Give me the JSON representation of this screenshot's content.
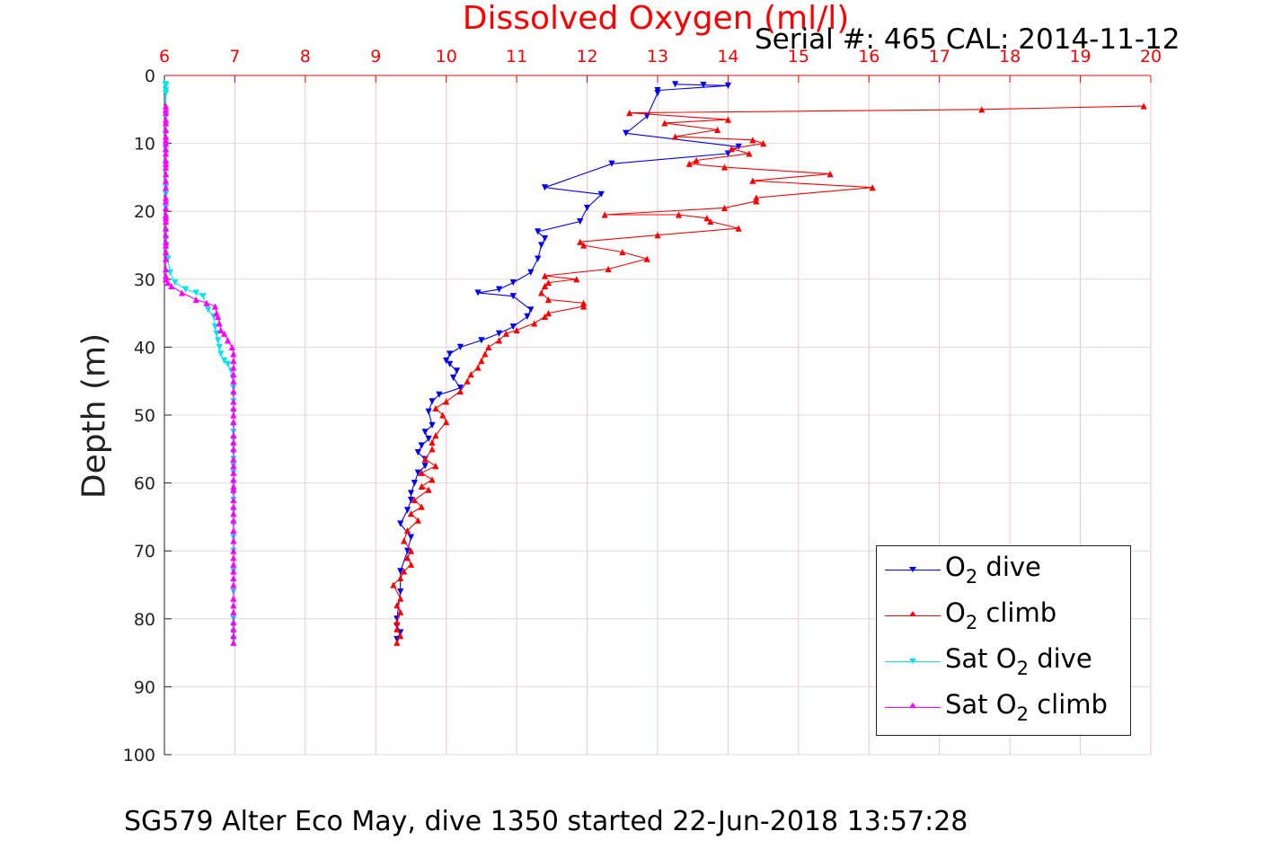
{
  "title": "Dissolved Oxygen (ml/l)",
  "serial": "Serial #: 465  CAL: 2014-11-12",
  "footer": "SG579 Alter Eco May, dive 1350 started 22-Jun-2018 13:57:28",
  "colors": {
    "o2_dive": "#0000ff",
    "o2_climb": "#ff0000",
    "sat_dive": "#00e5ee",
    "sat_climb": "#ff00ff",
    "grid": "#f6c0cc",
    "title": "#ff0000"
  },
  "legend": [
    {
      "pre": "O",
      "sub": "2",
      "post": " dive",
      "color": "#0000ff",
      "marker": "down"
    },
    {
      "pre": "O",
      "sub": "2",
      "post": " climb",
      "color": "#ff0000",
      "marker": "up"
    },
    {
      "pre": "Sat O",
      "sub": "2",
      "post": " dive",
      "color": "#00e5ee",
      "marker": "down"
    },
    {
      "pre": "Sat O",
      "sub": "2",
      "post": " climb",
      "color": "#ff00ff",
      "marker": "up"
    }
  ],
  "chart_data": {
    "type": "line",
    "title": "Dissolved Oxygen (ml/l)",
    "xlabel": "Dissolved Oxygen (ml/l)",
    "ylabel": "Depth (m)",
    "xlim": [
      6,
      20
    ],
    "ylim": [
      0,
      100
    ],
    "y_reversed": true,
    "x_axis_position": "top",
    "grid": true,
    "legend_position": "bottom-right",
    "xticks": [
      6,
      7,
      8,
      9,
      10,
      11,
      12,
      13,
      14,
      15,
      16,
      17,
      18,
      19,
      20
    ],
    "yticks": [
      0,
      10,
      20,
      30,
      40,
      50,
      60,
      70,
      80,
      90,
      100
    ],
    "series": [
      {
        "name": "O2 dive",
        "color": "#0000ff",
        "marker": "down",
        "x": [
          13.25,
          13.65,
          14.0,
          13.0,
          13.0,
          12.85,
          12.55,
          14.15,
          14.0,
          12.35,
          11.4,
          12.2,
          12.0,
          11.9,
          11.3,
          11.4,
          11.35,
          11.3,
          11.2,
          10.95,
          10.75,
          10.45,
          10.95,
          11.2,
          11.15,
          10.95,
          10.75,
          10.5,
          10.2,
          10.05,
          10.0,
          10.05,
          10.15,
          10.1,
          10.2,
          9.9,
          9.8,
          9.75,
          9.8,
          9.7,
          9.75,
          9.65,
          9.6,
          9.7,
          9.7,
          9.6,
          9.55,
          9.5,
          9.5,
          9.45,
          9.35,
          9.5,
          9.45,
          9.35,
          9.35,
          9.3,
          9.3,
          9.35,
          9.3
        ],
        "y": [
          1.3,
          1.4,
          1.5,
          2.2,
          2.6,
          6.0,
          8.5,
          10.5,
          11.5,
          13.0,
          16.5,
          17.5,
          19.5,
          21.5,
          23.0,
          24.0,
          25.0,
          27.0,
          29.0,
          30.5,
          31.5,
          32.0,
          32.5,
          34.5,
          35.5,
          37.0,
          38.0,
          39.0,
          40.0,
          41.0,
          42.0,
          42.5,
          43.5,
          44.5,
          46.0,
          47.0,
          48.0,
          49.5,
          51.5,
          52.5,
          53.5,
          54.5,
          55.5,
          56.5,
          57.5,
          58.5,
          60.0,
          61.5,
          62.5,
          64.0,
          66.0,
          68.0,
          70.0,
          73.0,
          76.0,
          80.0,
          81.0,
          82.0,
          83.0
        ]
      },
      {
        "name": "O2 climb",
        "color": "#ff0000",
        "marker": "up",
        "x": [
          9.3,
          9.35,
          9.3,
          9.3,
          9.35,
          9.3,
          9.35,
          9.25,
          9.35,
          9.4,
          9.5,
          9.45,
          9.5,
          9.4,
          9.45,
          9.6,
          9.5,
          9.65,
          9.55,
          9.75,
          9.65,
          9.8,
          9.65,
          9.85,
          9.7,
          9.8,
          9.8,
          9.85,
          10.0,
          9.95,
          9.85,
          10.0,
          10.2,
          10.3,
          10.35,
          10.45,
          10.5,
          10.55,
          10.6,
          10.75,
          10.85,
          11.0,
          11.25,
          11.4,
          11.45,
          11.95,
          11.95,
          11.45,
          11.35,
          11.4,
          11.45,
          11.85,
          11.4,
          12.3,
          12.85,
          12.5,
          11.95,
          11.9,
          13.0,
          14.15,
          13.75,
          13.7,
          13.3,
          12.25,
          13.95,
          14.4,
          14.4,
          16.05,
          14.35,
          15.45,
          13.95,
          13.45,
          13.55,
          14.3,
          14.05,
          14.5,
          14.35,
          13.25,
          13.85,
          13.1,
          14.0,
          12.6,
          17.6,
          19.9
        ],
        "y": [
          83.5,
          82.5,
          81.5,
          80.5,
          79.0,
          78.0,
          77.0,
          75.0,
          74.0,
          73.0,
          72.0,
          71.0,
          70.0,
          68.5,
          67.0,
          65.5,
          64.5,
          63.5,
          62.5,
          61.0,
          60.5,
          59.5,
          58.5,
          57.5,
          56.5,
          55.0,
          54.0,
          53.0,
          51.0,
          50.0,
          49.0,
          48.0,
          46.5,
          45.0,
          44.0,
          43.0,
          42.0,
          41.0,
          40.0,
          39.0,
          38.0,
          37.5,
          36.5,
          35.5,
          35.0,
          34.0,
          33.5,
          33.0,
          32.0,
          31.0,
          30.5,
          30.0,
          29.5,
          28.5,
          27.0,
          26.0,
          25.0,
          24.5,
          23.5,
          22.5,
          21.5,
          21.0,
          20.5,
          20.5,
          19.5,
          18.5,
          18.0,
          16.5,
          15.5,
          14.5,
          13.5,
          13.0,
          12.5,
          11.5,
          10.8,
          10.0,
          9.5,
          9.0,
          8.0,
          7.0,
          6.5,
          5.5,
          5.0,
          4.5
        ]
      },
      {
        "name": "Sat O2 dive",
        "color": "#00e5ee",
        "marker": "down",
        "x": [
          6.02,
          6.02,
          6.02,
          6.02,
          6.02,
          6.02,
          6.02,
          6.02,
          6.02,
          6.02,
          6.02,
          6.02,
          6.02,
          6.02,
          6.02,
          6.02,
          6.03,
          6.05,
          6.08,
          6.15,
          6.3,
          6.45,
          6.55,
          6.62,
          6.7,
          6.72,
          6.74,
          6.76,
          6.78,
          6.8,
          6.85,
          6.9,
          6.95,
          6.97,
          6.98,
          6.98,
          6.98,
          6.98,
          6.98,
          6.98,
          6.98,
          6.98,
          6.98,
          6.98,
          6.98,
          6.98,
          6.98,
          6.98,
          6.98,
          6.98,
          6.98,
          6.98,
          6.98,
          6.98,
          6.98,
          6.98,
          6.98,
          6.98,
          6.98
        ],
        "y": [
          1.3,
          1.4,
          1.5,
          2.2,
          2.6,
          6.0,
          8.5,
          10.5,
          11.5,
          13.0,
          16.5,
          17.5,
          19.5,
          21.5,
          23.0,
          24.0,
          25.0,
          27.0,
          29.0,
          30.5,
          31.5,
          32.0,
          32.5,
          34.5,
          35.5,
          37.0,
          38.0,
          39.0,
          40.0,
          41.0,
          42.0,
          42.5,
          43.5,
          44.5,
          46.0,
          47.0,
          48.0,
          49.5,
          51.5,
          52.5,
          53.5,
          54.5,
          55.5,
          56.5,
          57.5,
          58.5,
          60.0,
          61.5,
          62.5,
          64.0,
          66.0,
          68.0,
          70.0,
          73.0,
          76.0,
          80.0,
          81.0,
          82.0,
          83.0
        ]
      },
      {
        "name": "Sat O2 climb",
        "color": "#ff00ff",
        "marker": "up",
        "x": [
          6.98,
          6.98,
          6.98,
          6.98,
          6.98,
          6.98,
          6.98,
          6.98,
          6.98,
          6.98,
          6.98,
          6.98,
          6.98,
          6.98,
          6.98,
          6.98,
          6.98,
          6.98,
          6.98,
          6.98,
          6.98,
          6.98,
          6.98,
          6.98,
          6.98,
          6.98,
          6.98,
          6.98,
          6.98,
          6.98,
          6.98,
          6.98,
          6.98,
          6.98,
          6.98,
          6.98,
          6.98,
          6.98,
          6.96,
          6.9,
          6.85,
          6.8,
          6.78,
          6.76,
          6.74,
          6.72,
          6.6,
          6.45,
          6.25,
          6.1,
          6.05,
          6.02,
          6.02,
          6.02,
          6.02,
          6.02,
          6.02,
          6.02,
          6.02,
          6.02,
          6.02,
          6.02,
          6.02,
          6.02,
          6.02,
          6.02,
          6.02,
          6.02,
          6.02,
          6.02,
          6.02,
          6.02,
          6.02,
          6.02,
          6.02,
          6.02,
          6.02,
          6.02,
          6.02,
          6.02,
          6.02,
          6.02,
          6.02,
          6.02
        ],
        "y": [
          83.5,
          82.5,
          81.5,
          80.5,
          79.0,
          78.0,
          77.0,
          75.0,
          74.0,
          73.0,
          72.0,
          71.0,
          70.0,
          68.5,
          67.0,
          65.5,
          64.5,
          63.5,
          62.5,
          61.0,
          60.5,
          59.5,
          58.5,
          57.5,
          56.5,
          55.0,
          54.0,
          53.0,
          51.0,
          50.0,
          49.0,
          48.0,
          46.5,
          45.0,
          44.0,
          43.0,
          42.0,
          41.0,
          40.0,
          39.0,
          38.0,
          37.5,
          36.5,
          35.5,
          35.0,
          34.0,
          33.5,
          33.0,
          32.0,
          31.0,
          30.5,
          30.0,
          29.5,
          28.5,
          27.0,
          26.0,
          25.0,
          24.5,
          23.5,
          22.5,
          21.5,
          21.0,
          20.5,
          20.5,
          19.5,
          18.5,
          18.0,
          16.5,
          15.5,
          14.5,
          13.5,
          13.0,
          12.5,
          11.5,
          10.8,
          10.0,
          9.5,
          9.0,
          8.0,
          7.0,
          6.5,
          5.5,
          5.0,
          4.5
        ]
      }
    ]
  }
}
